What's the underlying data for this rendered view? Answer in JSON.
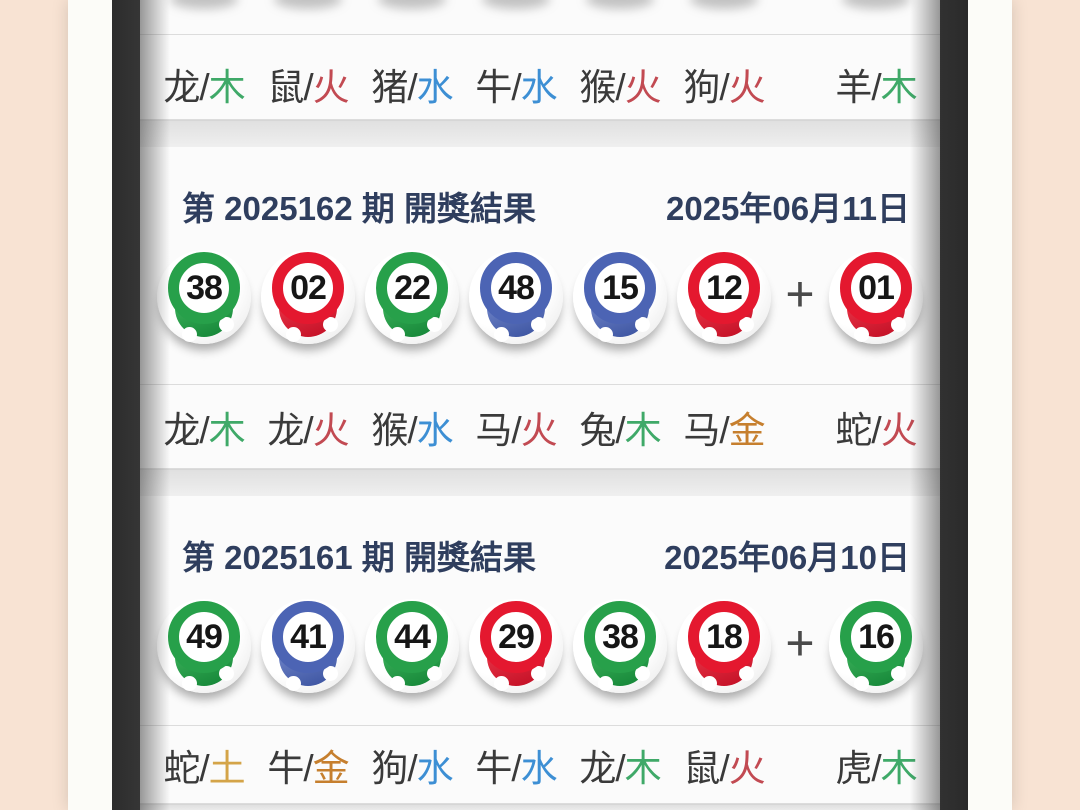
{
  "colors": {
    "background_pink": "#f8e3d3",
    "frame_white": "#fcfcf8",
    "bezel_dark": "#3c3c3c",
    "header_text": "#2f3e5e",
    "ball_green": "#27a04a",
    "ball_red": "#e4182f",
    "ball_blue": "#4c64b4",
    "element_wood": "#3fa968",
    "element_fire": "#c24a52",
    "element_water": "#3d8fd4",
    "element_gold": "#c67f2e",
    "element_earth": "#d4a448"
  },
  "zodiac_separator": "/",
  "plus_sign": "+",
  "top_row": {
    "zodiac": [
      {
        "animal": "龙",
        "element": "木",
        "element_key": "wood"
      },
      {
        "animal": "鼠",
        "element": "火",
        "element_key": "fire"
      },
      {
        "animal": "猪",
        "element": "水",
        "element_key": "water"
      },
      {
        "animal": "牛",
        "element": "水",
        "element_key": "water"
      },
      {
        "animal": "猴",
        "element": "火",
        "element_key": "fire"
      },
      {
        "animal": "狗",
        "element": "火",
        "element_key": "fire"
      },
      {
        "animal": "羊",
        "element": "木",
        "element_key": "wood"
      }
    ]
  },
  "sections": [
    {
      "period_label": "第 2025162 期 開獎結果",
      "date": "2025年06月11日",
      "balls": [
        {
          "num": "38",
          "color": "green"
        },
        {
          "num": "02",
          "color": "red"
        },
        {
          "num": "22",
          "color": "green"
        },
        {
          "num": "48",
          "color": "blue"
        },
        {
          "num": "15",
          "color": "blue"
        },
        {
          "num": "12",
          "color": "red"
        }
      ],
      "bonus": {
        "num": "01",
        "color": "red"
      },
      "zodiac": [
        {
          "animal": "龙",
          "element": "木",
          "element_key": "wood"
        },
        {
          "animal": "龙",
          "element": "火",
          "element_key": "fire"
        },
        {
          "animal": "猴",
          "element": "水",
          "element_key": "water"
        },
        {
          "animal": "马",
          "element": "火",
          "element_key": "fire"
        },
        {
          "animal": "兔",
          "element": "木",
          "element_key": "wood"
        },
        {
          "animal": "马",
          "element": "金",
          "element_key": "gold"
        },
        {
          "animal": "蛇",
          "element": "火",
          "element_key": "fire"
        }
      ]
    },
    {
      "period_label": "第 2025161 期 開獎結果",
      "date": "2025年06月10日",
      "balls": [
        {
          "num": "49",
          "color": "green"
        },
        {
          "num": "41",
          "color": "blue"
        },
        {
          "num": "44",
          "color": "green"
        },
        {
          "num": "29",
          "color": "red"
        },
        {
          "num": "38",
          "color": "green"
        },
        {
          "num": "18",
          "color": "red"
        }
      ],
      "bonus": {
        "num": "16",
        "color": "green"
      },
      "zodiac": [
        {
          "animal": "蛇",
          "element": "土",
          "element_key": "earth"
        },
        {
          "animal": "牛",
          "element": "金",
          "element_key": "gold"
        },
        {
          "animal": "狗",
          "element": "水",
          "element_key": "water"
        },
        {
          "animal": "牛",
          "element": "水",
          "element_key": "water"
        },
        {
          "animal": "龙",
          "element": "木",
          "element_key": "wood"
        },
        {
          "animal": "鼠",
          "element": "火",
          "element_key": "fire"
        },
        {
          "animal": "虎",
          "element": "木",
          "element_key": "wood"
        }
      ]
    }
  ]
}
